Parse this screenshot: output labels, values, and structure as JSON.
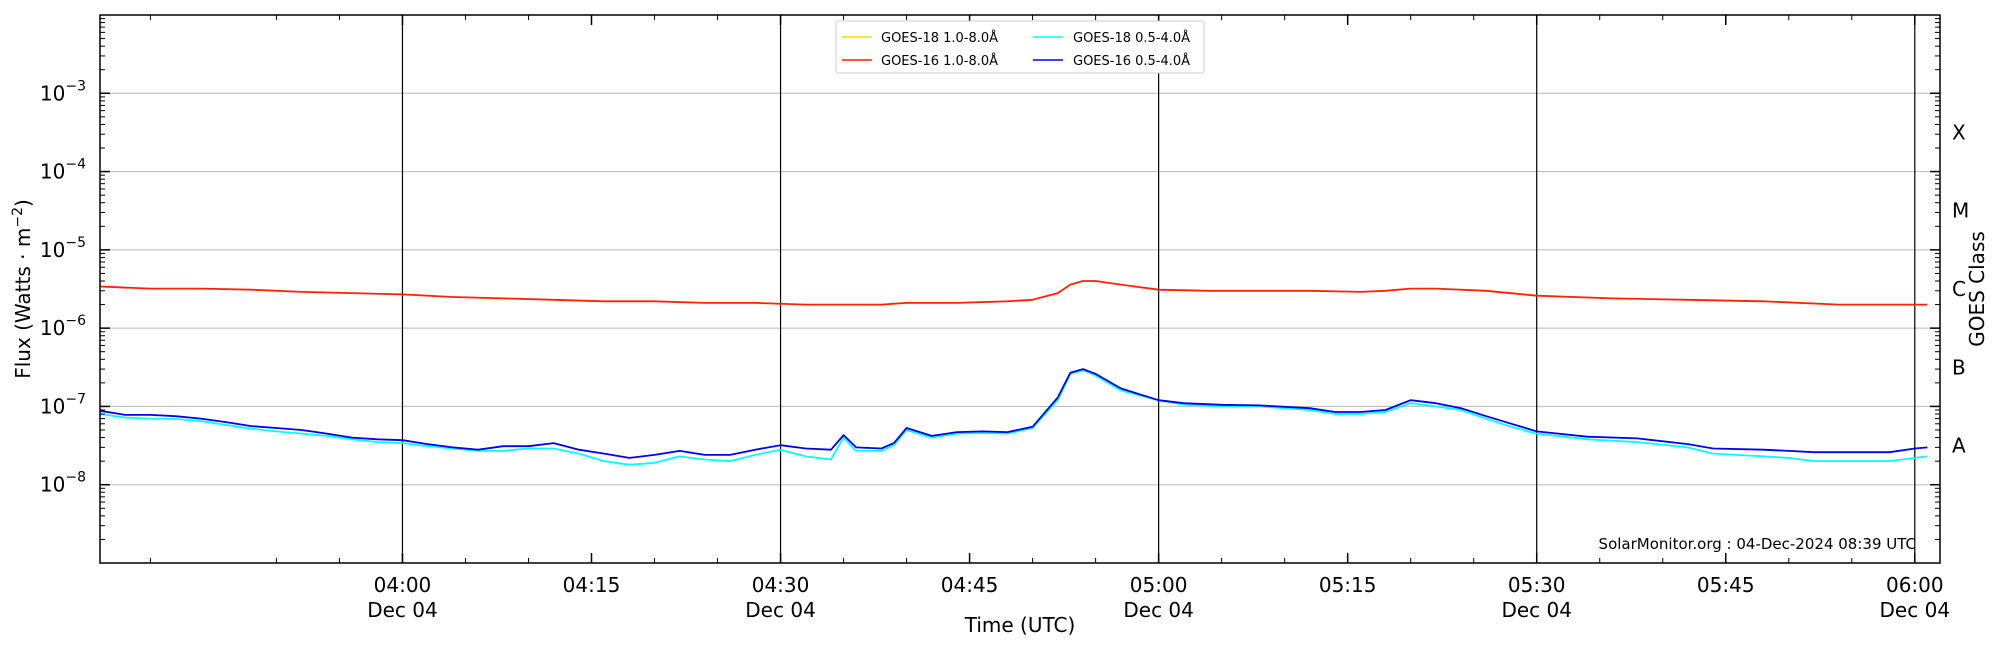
{
  "chart_data": {
    "type": "line",
    "title": "",
    "xlabel": "Time (UTC)",
    "ylabel": "Flux (Watts · m",
    "ylabel_superscript": "−2",
    "ylabel_close": ")",
    "ylabel_right": "GOES Class",
    "xlim": [
      "03:36",
      "06:02"
    ],
    "ylim": [
      1e-09,
      0.01
    ],
    "yscale": "log",
    "grid": "horizontal",
    "legend_placement": "top-center",
    "credit": "SolarMonitor.org : 04-Dec-2024 08:39 UTC",
    "x_ticks": [
      {
        "time": "04:00",
        "line1": "04:00",
        "line2": "Dec 04",
        "major": true
      },
      {
        "time": "04:15",
        "line1": "04:15",
        "line2": "",
        "major": false
      },
      {
        "time": "04:30",
        "line1": "04:30",
        "line2": "Dec 04",
        "major": true
      },
      {
        "time": "04:45",
        "line1": "04:45",
        "line2": "",
        "major": false
      },
      {
        "time": "05:00",
        "line1": "05:00",
        "line2": "Dec 04",
        "major": true
      },
      {
        "time": "05:15",
        "line1": "05:15",
        "line2": "",
        "major": false
      },
      {
        "time": "05:30",
        "line1": "05:30",
        "line2": "Dec 04",
        "major": true
      },
      {
        "time": "05:45",
        "line1": "05:45",
        "line2": "",
        "major": false
      },
      {
        "time": "06:00",
        "line1": "06:00",
        "line2": "Dec 04",
        "major": true
      }
    ],
    "y_ticks": [
      {
        "exp": -8,
        "base": "10",
        "sup": "−8"
      },
      {
        "exp": -7,
        "base": "10",
        "sup": "−7"
      },
      {
        "exp": -6,
        "base": "10",
        "sup": "−6"
      },
      {
        "exp": -5,
        "base": "10",
        "sup": "−5"
      },
      {
        "exp": -4,
        "base": "10",
        "sup": "−4"
      },
      {
        "exp": -3,
        "base": "10",
        "sup": "−3"
      }
    ],
    "goes_classes": [
      {
        "label": "A",
        "exp": -7.5
      },
      {
        "label": "B",
        "exp": -6.5
      },
      {
        "label": "C",
        "exp": -5.5
      },
      {
        "label": "M",
        "exp": -4.5
      },
      {
        "label": "X",
        "exp": -3.5
      }
    ],
    "legend": [
      {
        "name": "GOES-18 1.0-8.0Å",
        "color": "#ffd700"
      },
      {
        "name": "GOES-18 0.5-4.0Å",
        "color": "#00ffff"
      },
      {
        "name": "GOES-16 1.0-8.0Å",
        "color": "#ff2200"
      },
      {
        "name": "GOES-16 0.5-4.0Å",
        "color": "#0000ee"
      }
    ],
    "series": [
      {
        "name": "GOES-16 1.0-8.0Å",
        "color": "#ff2200",
        "points": [
          [
            "03:36",
            3.4e-06
          ],
          [
            "03:40",
            3.2e-06
          ],
          [
            "03:44",
            3.2e-06
          ],
          [
            "03:48",
            3.1e-06
          ],
          [
            "03:52",
            2.9e-06
          ],
          [
            "03:56",
            2.8e-06
          ],
          [
            "04:00",
            2.7e-06
          ],
          [
            "04:04",
            2.5e-06
          ],
          [
            "04:08",
            2.4e-06
          ],
          [
            "04:12",
            2.3e-06
          ],
          [
            "04:16",
            2.2e-06
          ],
          [
            "04:20",
            2.2e-06
          ],
          [
            "04:24",
            2.1e-06
          ],
          [
            "04:28",
            2.1e-06
          ],
          [
            "04:32",
            2e-06
          ],
          [
            "04:36",
            2e-06
          ],
          [
            "04:38",
            2e-06
          ],
          [
            "04:40",
            2.1e-06
          ],
          [
            "04:44",
            2.1e-06
          ],
          [
            "04:48",
            2.2e-06
          ],
          [
            "04:50",
            2.3e-06
          ],
          [
            "04:52",
            2.8e-06
          ],
          [
            "04:53",
            3.6e-06
          ],
          [
            "04:54",
            4e-06
          ],
          [
            "04:55",
            4e-06
          ],
          [
            "04:57",
            3.6e-06
          ],
          [
            "05:00",
            3.1e-06
          ],
          [
            "05:04",
            3e-06
          ],
          [
            "05:08",
            3e-06
          ],
          [
            "05:12",
            3e-06
          ],
          [
            "05:16",
            2.9e-06
          ],
          [
            "05:18",
            3e-06
          ],
          [
            "05:20",
            3.2e-06
          ],
          [
            "05:22",
            3.2e-06
          ],
          [
            "05:26",
            3e-06
          ],
          [
            "05:30",
            2.6e-06
          ],
          [
            "05:36",
            2.4e-06
          ],
          [
            "05:42",
            2.3e-06
          ],
          [
            "05:48",
            2.2e-06
          ],
          [
            "05:54",
            2e-06
          ],
          [
            "06:00",
            2e-06
          ],
          [
            "06:01",
            2e-06
          ]
        ]
      },
      {
        "name": "GOES-18 0.5-4.0Å",
        "color": "#00ffff",
        "points": [
          [
            "03:36",
            8e-08
          ],
          [
            "03:38",
            7.2e-08
          ],
          [
            "03:40",
            7e-08
          ],
          [
            "03:42",
            6.9e-08
          ],
          [
            "03:44",
            6.5e-08
          ],
          [
            "03:46",
            5.8e-08
          ],
          [
            "03:48",
            5.2e-08
          ],
          [
            "03:50",
            4.8e-08
          ],
          [
            "03:52",
            4.5e-08
          ],
          [
            "03:54",
            4.2e-08
          ],
          [
            "03:56",
            3.8e-08
          ],
          [
            "03:58",
            3.5e-08
          ],
          [
            "04:00",
            3.4e-08
          ],
          [
            "04:02",
            3.1e-08
          ],
          [
            "04:04",
            2.9e-08
          ],
          [
            "04:06",
            2.7e-08
          ],
          [
            "04:08",
            2.7e-08
          ],
          [
            "04:10",
            2.9e-08
          ],
          [
            "04:12",
            2.9e-08
          ],
          [
            "04:14",
            2.5e-08
          ],
          [
            "04:16",
            2e-08
          ],
          [
            "04:18",
            1.8e-08
          ],
          [
            "04:20",
            1.9e-08
          ],
          [
            "04:22",
            2.3e-08
          ],
          [
            "04:24",
            2.1e-08
          ],
          [
            "04:26",
            2e-08
          ],
          [
            "04:28",
            2.4e-08
          ],
          [
            "04:30",
            2.8e-08
          ],
          [
            "04:32",
            2.3e-08
          ],
          [
            "04:34",
            2.1e-08
          ],
          [
            "04:35",
            4e-08
          ],
          [
            "04:36",
            2.7e-08
          ],
          [
            "04:38",
            2.7e-08
          ],
          [
            "04:39",
            3.2e-08
          ],
          [
            "04:40",
            5e-08
          ],
          [
            "04:42",
            4e-08
          ],
          [
            "04:44",
            4.5e-08
          ],
          [
            "04:46",
            4.6e-08
          ],
          [
            "04:48",
            4.5e-08
          ],
          [
            "04:50",
            5.3e-08
          ],
          [
            "04:52",
            1.2e-07
          ],
          [
            "04:53",
            2.6e-07
          ],
          [
            "04:54",
            2.9e-07
          ],
          [
            "04:55",
            2.5e-07
          ],
          [
            "04:57",
            1.6e-07
          ],
          [
            "05:00",
            1.2e-07
          ],
          [
            "05:02",
            1.05e-07
          ],
          [
            "05:05",
            1e-07
          ],
          [
            "05:08",
            1e-07
          ],
          [
            "05:12",
            9e-08
          ],
          [
            "05:14",
            8e-08
          ],
          [
            "05:16",
            8e-08
          ],
          [
            "05:18",
            8.5e-08
          ],
          [
            "05:20",
            1.1e-07
          ],
          [
            "05:22",
            1e-07
          ],
          [
            "05:24",
            9e-08
          ],
          [
            "05:26",
            7e-08
          ],
          [
            "05:28",
            5.5e-08
          ],
          [
            "05:30",
            4.5e-08
          ],
          [
            "05:34",
            3.8e-08
          ],
          [
            "05:38",
            3.5e-08
          ],
          [
            "05:42",
            3e-08
          ],
          [
            "05:44",
            2.5e-08
          ],
          [
            "05:48",
            2.3e-08
          ],
          [
            "05:50",
            2.2e-08
          ],
          [
            "05:52",
            2e-08
          ],
          [
            "05:54",
            2e-08
          ],
          [
            "05:58",
            2e-08
          ],
          [
            "06:00",
            2.2e-08
          ],
          [
            "06:01",
            2.3e-08
          ]
        ]
      },
      {
        "name": "GOES-16 0.5-4.0Å",
        "color": "#0000ee",
        "points": [
          [
            "03:36",
            8.8e-08
          ],
          [
            "03:38",
            7.8e-08
          ],
          [
            "03:40",
            7.8e-08
          ],
          [
            "03:42",
            7.5e-08
          ],
          [
            "03:44",
            7e-08
          ],
          [
            "03:46",
            6.3e-08
          ],
          [
            "03:48",
            5.6e-08
          ],
          [
            "03:50",
            5.3e-08
          ],
          [
            "03:52",
            5e-08
          ],
          [
            "03:54",
            4.5e-08
          ],
          [
            "03:56",
            4e-08
          ],
          [
            "03:58",
            3.8e-08
          ],
          [
            "04:00",
            3.7e-08
          ],
          [
            "04:02",
            3.3e-08
          ],
          [
            "04:04",
            3e-08
          ],
          [
            "04:06",
            2.8e-08
          ],
          [
            "04:08",
            3.1e-08
          ],
          [
            "04:10",
            3.1e-08
          ],
          [
            "04:12",
            3.4e-08
          ],
          [
            "04:14",
            2.8e-08
          ],
          [
            "04:16",
            2.5e-08
          ],
          [
            "04:18",
            2.2e-08
          ],
          [
            "04:20",
            2.4e-08
          ],
          [
            "04:22",
            2.7e-08
          ],
          [
            "04:24",
            2.4e-08
          ],
          [
            "04:26",
            2.4e-08
          ],
          [
            "04:28",
            2.8e-08
          ],
          [
            "04:30",
            3.2e-08
          ],
          [
            "04:32",
            2.9e-08
          ],
          [
            "04:34",
            2.8e-08
          ],
          [
            "04:35",
            4.3e-08
          ],
          [
            "04:36",
            3e-08
          ],
          [
            "04:38",
            2.9e-08
          ],
          [
            "04:39",
            3.4e-08
          ],
          [
            "04:40",
            5.3e-08
          ],
          [
            "04:42",
            4.2e-08
          ],
          [
            "04:44",
            4.7e-08
          ],
          [
            "04:46",
            4.8e-08
          ],
          [
            "04:48",
            4.7e-08
          ],
          [
            "04:50",
            5.5e-08
          ],
          [
            "04:52",
            1.3e-07
          ],
          [
            "04:53",
            2.7e-07
          ],
          [
            "04:54",
            3e-07
          ],
          [
            "04:55",
            2.6e-07
          ],
          [
            "04:57",
            1.7e-07
          ],
          [
            "05:00",
            1.2e-07
          ],
          [
            "05:02",
            1.1e-07
          ],
          [
            "05:05",
            1.05e-07
          ],
          [
            "05:08",
            1.03e-07
          ],
          [
            "05:12",
            9.5e-08
          ],
          [
            "05:14",
            8.5e-08
          ],
          [
            "05:16",
            8.5e-08
          ],
          [
            "05:18",
            9e-08
          ],
          [
            "05:20",
            1.2e-07
          ],
          [
            "05:22",
            1.1e-07
          ],
          [
            "05:24",
            9.5e-08
          ],
          [
            "05:26",
            7.5e-08
          ],
          [
            "05:28",
            6e-08
          ],
          [
            "05:30",
            4.8e-08
          ],
          [
            "05:34",
            4.1e-08
          ],
          [
            "05:38",
            3.9e-08
          ],
          [
            "05:42",
            3.3e-08
          ],
          [
            "05:44",
            2.9e-08
          ],
          [
            "05:48",
            2.8e-08
          ],
          [
            "05:50",
            2.7e-08
          ],
          [
            "05:52",
            2.6e-08
          ],
          [
            "05:54",
            2.6e-08
          ],
          [
            "05:58",
            2.6e-08
          ],
          [
            "06:00",
            2.9e-08
          ],
          [
            "06:01",
            3e-08
          ]
        ]
      }
    ]
  }
}
